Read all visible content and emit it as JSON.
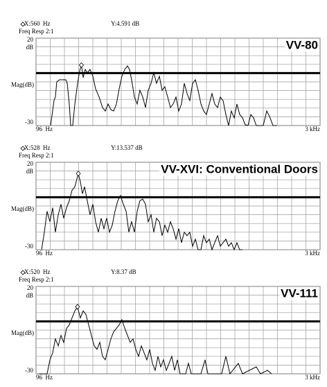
{
  "chart_data": [
    {
      "type": "line",
      "title": "VV-80",
      "subtitle": "Freq Resp 2:1",
      "y_label": "Mag(dB)",
      "y_unit": "dB",
      "cursor": {
        "x": 560,
        "y": 4.591,
        "x_label": "X:560  Hz",
        "y_label": "Y:4.591 dB"
      },
      "reference": 0,
      "color": "#000000",
      "xlim": [
        96,
        3000
      ],
      "ylim": [
        -30,
        20
      ],
      "xticks": [
        {
          "value": 96,
          "label": "96  Hz"
        },
        {
          "value": 3000,
          "label": "3 kHz"
        }
      ],
      "yticks": [
        20,
        -30
      ],
      "xgrid": [
        96,
        241.2,
        386.4,
        531.6,
        676.8,
        822,
        967.2,
        1112.4,
        1257.6,
        1402.8,
        1548,
        1693.2,
        1838.4,
        1983.6,
        2128.8,
        2274,
        2419.2,
        2564.4,
        2709.6,
        2854.8,
        3000
      ],
      "ygrid": [
        20,
        15,
        10,
        5,
        0,
        -5,
        -10,
        -15,
        -20,
        -25,
        -30
      ],
      "x": [
        245,
        280,
        294,
        308,
        337,
        401,
        415,
        436,
        450,
        471,
        493,
        521,
        542,
        560,
        578,
        599,
        620,
        648,
        677,
        705,
        741,
        776,
        804,
        833,
        861,
        889,
        918,
        946,
        974,
        1003,
        1031,
        1052,
        1073,
        1102,
        1130,
        1158,
        1187,
        1215,
        1243,
        1272,
        1300,
        1328,
        1357,
        1385,
        1413,
        1442,
        1470,
        1498,
        1527,
        1555,
        1583,
        1612,
        1640,
        1668,
        1697,
        1725,
        1753,
        1782,
        1810,
        1838,
        1867,
        1895,
        1923,
        1952,
        1980,
        2008,
        2037,
        2065,
        2093,
        2122,
        2150,
        2178,
        2207,
        2235,
        2263,
        2292,
        2320,
        2348,
        2419,
        2455,
        2490,
        2518,
        2561
      ],
      "values": [
        -30,
        -15.7,
        -13.7,
        -5,
        -3.8,
        -3.8,
        -5.8,
        -17.7,
        -30,
        -30,
        -17.7,
        -5.8,
        1.3,
        4.6,
        -2.6,
        2.1,
        0.2,
        2.1,
        -1.8,
        -9,
        -13.7,
        -19.7,
        -21.7,
        -17.7,
        -20.9,
        -21.7,
        -17.7,
        -9,
        -1.8,
        2.1,
        4.1,
        2.1,
        -3.8,
        -13.7,
        -17.7,
        -9.8,
        -13.7,
        -19.7,
        -9.8,
        -5.8,
        0.2,
        -5.8,
        -1.8,
        -9.8,
        -7.8,
        -13.7,
        -19.7,
        -17.7,
        -13.7,
        -21.7,
        -17.7,
        -5.8,
        -11.7,
        -15.7,
        -5.8,
        -3.8,
        -9.8,
        -17.7,
        -21.7,
        -23.7,
        -17.7,
        -11.7,
        -17.7,
        -19.7,
        -13.7,
        -15.7,
        -23.7,
        -30,
        -21.7,
        -25.6,
        -17.7,
        -23.7,
        -25.6,
        -29.6,
        -30,
        -23.7,
        -25.6,
        -30,
        -30,
        -21.7,
        -25.6,
        -30,
        -30
      ]
    },
    {
      "type": "line",
      "title": "VV-XVI: Conventional Doors",
      "subtitle": "Freq Resp 2:1",
      "y_label": "Mag(dB)",
      "y_unit": "dB",
      "cursor": {
        "x": 528,
        "y": 13.537,
        "x_label": "X:528  Hz",
        "y_label": "Y:13.537 dB"
      },
      "reference": 0,
      "color": "#000000",
      "xlim": [
        96,
        3000
      ],
      "ylim": [
        -30,
        20
      ],
      "xticks": [
        {
          "value": 96,
          "label": "96  Hz"
        },
        {
          "value": 3000,
          "label": "3 kHz"
        }
      ],
      "yticks": [
        20,
        -30
      ],
      "xgrid": [
        96,
        241.2,
        386.4,
        531.6,
        676.8,
        822,
        967.2,
        1112.4,
        1257.6,
        1402.8,
        1548,
        1693.2,
        1838.4,
        1983.6,
        2128.8,
        2274,
        2419.2,
        2564.4,
        2709.6,
        2854.8,
        3000
      ],
      "ygrid": [
        20,
        15,
        10,
        5,
        0,
        -5,
        -10,
        -15,
        -20,
        -25,
        -30
      ],
      "x": [
        153,
        181,
        209,
        238,
        266,
        294,
        323,
        351,
        379,
        408,
        436,
        464,
        493,
        528,
        549,
        571,
        592,
        620,
        648,
        677,
        705,
        733,
        762,
        790,
        818,
        847,
        875,
        903,
        932,
        960,
        988,
        1017,
        1045,
        1073,
        1102,
        1130,
        1158,
        1187,
        1215,
        1243,
        1272,
        1300,
        1328,
        1357,
        1385,
        1413,
        1442,
        1470,
        1498,
        1527,
        1555,
        1583,
        1612,
        1640,
        1668,
        1697,
        1725,
        1753,
        1782,
        1810,
        1838,
        1867,
        1895,
        1923,
        1952,
        1980,
        2008,
        2037,
        2065,
        2093,
        2122,
        2150,
        2178,
        2207
      ],
      "values": [
        -30,
        -20,
        -8,
        -14,
        -6,
        -20,
        -10,
        -4,
        -12,
        -6,
        -2,
        4,
        6,
        13.5,
        9,
        2,
        6,
        -2,
        -10,
        -4,
        -14,
        -20,
        -12,
        -18,
        -12,
        -20,
        -16,
        -8,
        -2,
        1,
        -4,
        -8,
        -20,
        -14,
        -20,
        -8,
        -2,
        -1,
        -4,
        -14,
        -10,
        -20,
        -12,
        -14,
        -22,
        -16,
        -20,
        -14,
        -18,
        -24,
        -18,
        -26,
        -20,
        -22,
        -20,
        -28,
        -24,
        -30,
        -30,
        -22,
        -26,
        -24,
        -30,
        -26,
        -22,
        -28,
        -26,
        -24,
        -28,
        -26,
        -30,
        -26,
        -30,
        -30
      ]
    },
    {
      "type": "line",
      "title": "VV-111",
      "subtitle": "Freq Resp 2:1",
      "y_label": "Mag(dB)",
      "y_unit": "dB",
      "cursor": {
        "x": 520,
        "y": 8.37,
        "x_label": "X:520  Hz",
        "y_label": "Y:8.37 dB"
      },
      "reference": 0,
      "color": "#000000",
      "xlim": [
        96,
        3000
      ],
      "ylim": [
        -30,
        20
      ],
      "xticks": [
        {
          "value": 96,
          "label": "96  Hz"
        },
        {
          "value": 3000,
          "label": "3 kHz"
        }
      ],
      "yticks": [
        20,
        -30
      ],
      "xgrid": [
        96,
        241.2,
        386.4,
        531.6,
        676.8,
        822,
        967.2,
        1112.4,
        1257.6,
        1402.8,
        1548,
        1693.2,
        1838.4,
        1983.6,
        2128.8,
        2274,
        2419.2,
        2564.4,
        2709.6,
        2854.8,
        3000
      ],
      "ygrid": [
        20,
        15,
        10,
        5,
        0,
        -5,
        -10,
        -15,
        -20,
        -25,
        -30
      ],
      "x": [
        124,
        209,
        238,
        266,
        294,
        323,
        351,
        379,
        408,
        436,
        464,
        493,
        520,
        549,
        578,
        606,
        634,
        662,
        691,
        719,
        748,
        776,
        804,
        833,
        861,
        889,
        918,
        946,
        974,
        1003,
        1031,
        1059,
        1088,
        1116,
        1144,
        1173,
        1201,
        1229,
        1258,
        1286,
        1314,
        1343,
        1371,
        1399,
        1428,
        1456,
        1484,
        1513,
        1541,
        1569,
        1626,
        1654,
        1683,
        1782,
        1824,
        1853,
        1994,
        2037,
        2079,
        2164,
        2207,
        2348,
        2391,
        2462,
        2504
      ],
      "values": [
        -30,
        -30,
        -22,
        -18,
        -10,
        -14,
        -8,
        -12,
        -4,
        -2,
        2,
        6,
        8.37,
        2,
        6,
        4,
        -2,
        -8,
        -14,
        -16,
        -12,
        -20,
        -22,
        -16,
        -10,
        -6,
        -4,
        -2,
        1,
        -4,
        -8,
        -12,
        -10,
        -16,
        -20,
        -14,
        -18,
        -22,
        -16,
        -24,
        -28,
        -20,
        -26,
        -22,
        -28,
        -24,
        -20,
        -28,
        -22,
        -30,
        -30,
        -24,
        -30,
        -30,
        -22,
        -30,
        -30,
        -20,
        -30,
        -24,
        -30,
        -26,
        -30,
        -28,
        -30
      ]
    }
  ]
}
